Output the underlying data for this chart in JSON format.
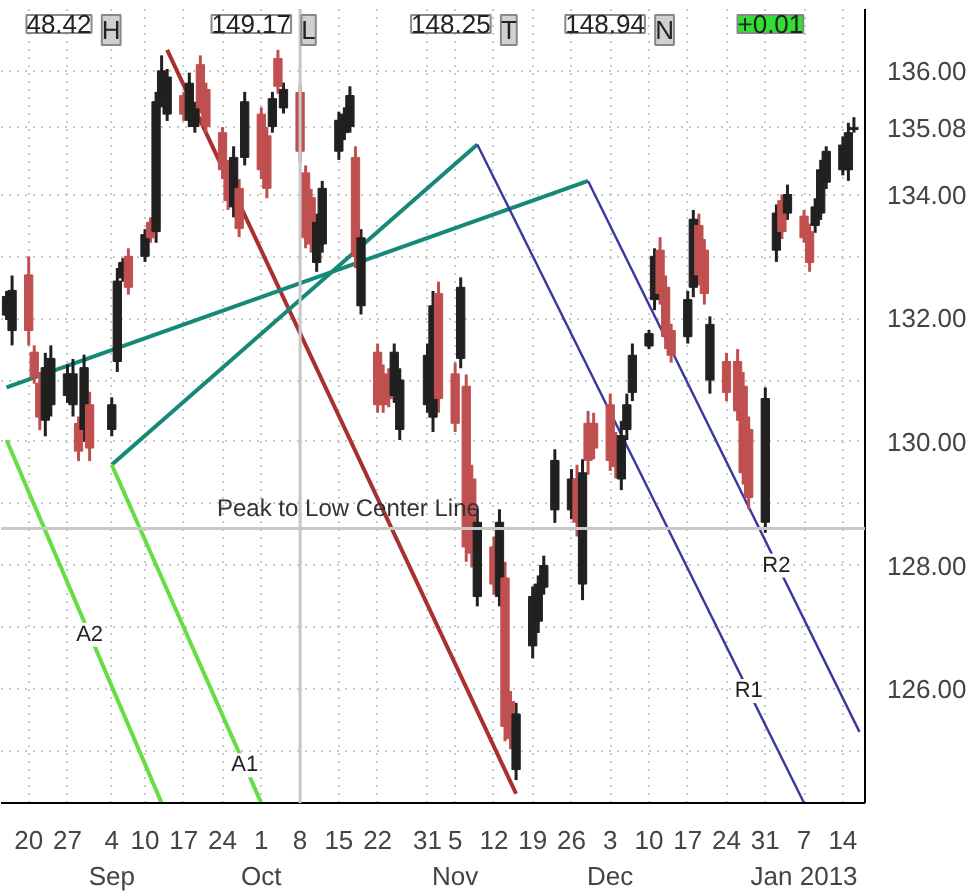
{
  "chart_data": {
    "type": "candlestick",
    "x": [
      "2012-08-16",
      "2012-08-17",
      "2012-08-20",
      "2012-08-21",
      "2012-08-22",
      "2012-08-23",
      "2012-08-24",
      "2012-08-27",
      "2012-08-28",
      "2012-08-29",
      "2012-08-30",
      "2012-08-31",
      "2012-09-04",
      "2012-09-05",
      "2012-09-06",
      "2012-09-07",
      "2012-09-10",
      "2012-09-11",
      "2012-09-12",
      "2012-09-13",
      "2012-09-14",
      "2012-09-17",
      "2012-09-18",
      "2012-09-19",
      "2012-09-20",
      "2012-09-21",
      "2012-09-24",
      "2012-09-25",
      "2012-09-26",
      "2012-09-27",
      "2012-09-28",
      "2012-10-01",
      "2012-10-02",
      "2012-10-03",
      "2012-10-04",
      "2012-10-05",
      "2012-10-08",
      "2012-10-09",
      "2012-10-10",
      "2012-10-11",
      "2012-10-12",
      "2012-10-15",
      "2012-10-16",
      "2012-10-17",
      "2012-10-18",
      "2012-10-19",
      "2012-10-22",
      "2012-10-23",
      "2012-10-24",
      "2012-10-25",
      "2012-10-26",
      "2012-10-31",
      "2012-11-01",
      "2012-11-02",
      "2012-11-05",
      "2012-11-06",
      "2012-11-07",
      "2012-11-08",
      "2012-11-09",
      "2012-11-12",
      "2012-11-13",
      "2012-11-14",
      "2012-11-15",
      "2012-11-16",
      "2012-11-19",
      "2012-11-20",
      "2012-11-21",
      "2012-11-23",
      "2012-11-26",
      "2012-11-27",
      "2012-11-28",
      "2012-11-29",
      "2012-11-30",
      "2012-12-03",
      "2012-12-04",
      "2012-12-05",
      "2012-12-06",
      "2012-12-07",
      "2012-12-10",
      "2012-12-11",
      "2012-12-12",
      "2012-12-13",
      "2012-12-14",
      "2012-12-17",
      "2012-12-18",
      "2012-12-19",
      "2012-12-20",
      "2012-12-21",
      "2012-12-24",
      "2012-12-26",
      "2012-12-27",
      "2012-12-28",
      "2012-12-31",
      "2013-01-02",
      "2013-01-03",
      "2013-01-04",
      "2013-01-07",
      "2013-01-08",
      "2013-01-09",
      "2013-01-10",
      "2013-01-11",
      "2013-01-14",
      "2013-01-15",
      "2013-01-16"
    ],
    "ohlc": [
      [
        132.05,
        132.44,
        131.97,
        132.35
      ],
      [
        131.8,
        132.69,
        131.56,
        132.45
      ],
      [
        132.7,
        133.0,
        131.56,
        131.8
      ],
      [
        131.45,
        131.56,
        130.94,
        131.05
      ],
      [
        130.95,
        131.13,
        130.19,
        130.4
      ],
      [
        130.35,
        131.44,
        130.09,
        131.2
      ],
      [
        130.6,
        131.56,
        130.41,
        131.35
      ],
      [
        130.75,
        131.25,
        130.63,
        131.1
      ],
      [
        130.6,
        131.34,
        130.41,
        131.1
      ],
      [
        130.3,
        130.41,
        129.69,
        129.85
      ],
      [
        130.2,
        131.41,
        130.0,
        131.2
      ],
      [
        130.6,
        130.81,
        129.69,
        129.9
      ],
      [
        130.2,
        130.72,
        130.09,
        130.6
      ],
      [
        131.3,
        132.81,
        131.13,
        132.6
      ],
      [
        132.65,
        132.97,
        132.59,
        132.9
      ],
      [
        133.0,
        133.13,
        132.38,
        132.5
      ],
      [
        133.0,
        133.44,
        132.91,
        133.35
      ],
      [
        133.55,
        133.63,
        133.22,
        133.3
      ],
      [
        133.4,
        135.66,
        133.22,
        135.5
      ],
      [
        135.5,
        136.25,
        135.41,
        136.0
      ],
      [
        135.3,
        136.03,
        135.19,
        135.9
      ],
      [
        135.6,
        135.66,
        135.19,
        135.3
      ],
      [
        135.2,
        135.97,
        135.09,
        135.8
      ],
      [
        135.1,
        135.5,
        135.0,
        135.4
      ],
      [
        136.1,
        136.25,
        135.31,
        135.4
      ],
      [
        135.7,
        135.81,
        135.0,
        135.1
      ],
      [
        135.0,
        135.09,
        134.25,
        134.4
      ],
      [
        134.45,
        134.56,
        133.75,
        133.9
      ],
      [
        133.8,
        134.78,
        133.63,
        134.6
      ],
      [
        134.1,
        134.25,
        133.31,
        133.45
      ],
      [
        134.6,
        135.66,
        134.47,
        135.5
      ],
      [
        135.3,
        135.41,
        134.25,
        134.4
      ],
      [
        134.95,
        135.09,
        133.94,
        134.1
      ],
      [
        135.1,
        135.66,
        135.0,
        135.55
      ],
      [
        136.2,
        136.34,
        135.63,
        135.75
      ],
      [
        135.4,
        135.81,
        135.31,
        135.7
      ],
      [
        135.65,
        135.78,
        134.53,
        134.7
      ],
      [
        134.35,
        134.47,
        133.13,
        133.3
      ],
      [
        133.95,
        134.09,
        133.06,
        133.2
      ],
      [
        132.9,
        133.69,
        132.75,
        133.55
      ],
      [
        133.2,
        134.22,
        133.06,
        134.1
      ],
      [
        134.7,
        135.34,
        134.56,
        135.2
      ],
      [
        135.0,
        135.41,
        134.88,
        135.3
      ],
      [
        135.1,
        135.75,
        135.0,
        135.6
      ],
      [
        134.6,
        134.78,
        132.81,
        133.0
      ],
      [
        132.2,
        133.44,
        132.06,
        133.3
      ],
      [
        131.45,
        131.59,
        130.47,
        130.6
      ],
      [
        131.1,
        131.25,
        130.47,
        130.6
      ],
      [
        131.05,
        131.19,
        130.56,
        130.7
      ],
      [
        130.75,
        131.59,
        130.63,
        131.45
      ],
      [
        130.2,
        131.19,
        130.03,
        131.0
      ],
      [
        130.6,
        131.59,
        130.47,
        131.4
      ],
      [
        130.4,
        132.44,
        130.16,
        132.2
      ],
      [
        132.4,
        132.59,
        130.47,
        130.7
      ],
      [
        131.1,
        131.28,
        130.16,
        130.3
      ],
      [
        131.35,
        132.66,
        131.19,
        132.5
      ],
      [
        130.9,
        131.09,
        128.06,
        128.3
      ],
      [
        129.4,
        129.63,
        127.97,
        128.2
      ],
      [
        127.5,
        128.91,
        127.34,
        128.7
      ],
      [
        128.3,
        128.47,
        127.53,
        127.7
      ],
      [
        127.5,
        128.91,
        127.34,
        128.7
      ],
      [
        127.8,
        128.06,
        125.16,
        125.4
      ],
      [
        125.8,
        125.97,
        125.03,
        125.2
      ],
      [
        124.7,
        125.78,
        124.53,
        125.6
      ],
      [
        126.7,
        127.66,
        126.5,
        127.5
      ],
      [
        127.1,
        127.84,
        126.91,
        127.7
      ],
      [
        127.65,
        128.16,
        127.53,
        128.0
      ],
      [
        128.9,
        129.88,
        128.69,
        129.7
      ],
      [
        128.9,
        129.56,
        128.75,
        129.4
      ],
      [
        129.4,
        129.63,
        128.47,
        128.7
      ],
      [
        127.7,
        129.72,
        127.44,
        129.5
      ],
      [
        130.3,
        130.5,
        129.47,
        129.7
      ],
      [
        130.3,
        130.47,
        129.72,
        129.9
      ],
      [
        130.6,
        130.78,
        129.53,
        129.7
      ],
      [
        130.0,
        130.16,
        129.41,
        129.6
      ],
      [
        129.4,
        130.34,
        129.22,
        130.1
      ],
      [
        130.2,
        130.78,
        130.03,
        130.6
      ],
      [
        130.8,
        131.59,
        130.66,
        131.4
      ],
      [
        131.55,
        131.81,
        131.5,
        131.75
      ],
      [
        132.3,
        133.13,
        132.13,
        133.0
      ],
      [
        133.1,
        133.31,
        132.22,
        132.4
      ],
      [
        132.5,
        132.69,
        131.5,
        131.7
      ],
      [
        131.8,
        131.91,
        131.28,
        131.4
      ],
      [
        131.7,
        132.44,
        131.59,
        132.3
      ],
      [
        132.5,
        133.75,
        132.34,
        133.6
      ],
      [
        133.5,
        133.69,
        132.53,
        132.7
      ],
      [
        133.1,
        133.28,
        132.22,
        132.4
      ],
      [
        131.0,
        132.03,
        130.78,
        131.9
      ],
      [
        131.3,
        131.44,
        130.66,
        130.8
      ],
      [
        131.3,
        131.5,
        130.34,
        130.5
      ],
      [
        130.9,
        131.13,
        129.31,
        129.5
      ],
      [
        130.2,
        130.41,
        128.91,
        129.1
      ],
      [
        128.7,
        130.88,
        128.53,
        130.7
      ],
      [
        133.1,
        133.84,
        132.91,
        133.7
      ],
      [
        133.9,
        134.0,
        133.28,
        133.4
      ],
      [
        133.7,
        134.16,
        133.59,
        134.0
      ],
      [
        133.65,
        133.75,
        133.22,
        133.3
      ],
      [
        133.4,
        133.53,
        132.75,
        132.9
      ],
      [
        133.5,
        133.94,
        133.38,
        133.8
      ],
      [
        133.7,
        134.56,
        133.59,
        134.4
      ],
      [
        134.2,
        134.78,
        134.09,
        134.7
      ],
      [
        134.4,
        134.94,
        134.31,
        134.8
      ],
      [
        134.4,
        135.16,
        134.22,
        135.0
      ],
      [
        135.05,
        135.25,
        135.0,
        135.08
      ]
    ],
    "colors": [
      "#202020",
      "#202020",
      "#c05050",
      "#c05050",
      "#c05050",
      "#202020",
      "#202020",
      "#202020",
      "#202020",
      "#c05050",
      "#202020",
      "#c05050",
      "#202020",
      "#202020",
      "#202020",
      "#c05050",
      "#202020",
      "#c05050",
      "#202020",
      "#202020",
      "#202020",
      "#c05050",
      "#202020",
      "#202020",
      "#c05050",
      "#c05050",
      "#c05050",
      "#c05050",
      "#202020",
      "#c05050",
      "#202020",
      "#c05050",
      "#c05050",
      "#202020",
      "#c05050",
      "#202020",
      "#c05050",
      "#c05050",
      "#c05050",
      "#202020",
      "#202020",
      "#202020",
      "#202020",
      "#202020",
      "#c05050",
      "#202020",
      "#c05050",
      "#c05050",
      "#c05050",
      "#202020",
      "#202020",
      "#202020",
      "#202020",
      "#c05050",
      "#c05050",
      "#202020",
      "#c05050",
      "#c05050",
      "#202020",
      "#c05050",
      "#202020",
      "#c05050",
      "#c05050",
      "#202020",
      "#202020",
      "#202020",
      "#202020",
      "#202020",
      "#202020",
      "#c05050",
      "#202020",
      "#c05050",
      "#c05050",
      "#c05050",
      "#c05050",
      "#202020",
      "#202020",
      "#202020",
      "#202020",
      "#202020",
      "#c05050",
      "#c05050",
      "#c05050",
      "#202020",
      "#202020",
      "#c05050",
      "#c05050",
      "#202020",
      "#c05050",
      "#c05050",
      "#c05050",
      "#c05050",
      "#202020",
      "#202020",
      "#c05050",
      "#202020",
      "#c05050",
      "#c05050",
      "#202020",
      "#202020",
      "#202020",
      "#202020",
      "#202020",
      "#202020"
    ],
    "series": [
      {
        "type": "line",
        "color": "#a83030",
        "x": [
          "2012-09-14",
          "2012-11-16"
        ],
        "values": [
          136.34,
          124.31
        ]
      },
      {
        "type": "line",
        "color": "#168878",
        "x": [
          "2012-08-16",
          "2012-11-29"
        ],
        "values": [
          130.88,
          134.22
        ]
      },
      {
        "type": "line",
        "color": "#168878",
        "x": [
          "2012-09-04",
          "2012-11-09"
        ],
        "values": [
          129.63,
          134.81
        ]
      },
      {
        "type": "line",
        "color": "#3838a0",
        "x": [
          "2012-11-09",
          "2013-01-07"
        ],
        "values": [
          134.81,
          124.16
        ]
      },
      {
        "type": "line",
        "color": "#3838a0",
        "x": [
          "2012-11-29",
          "2013-01-17"
        ],
        "values": [
          134.22,
          125.31
        ]
      },
      {
        "type": "line",
        "color": "#66dd44",
        "x": [
          "2012-08-16",
          "2012-09-13"
        ],
        "values": [
          130.03,
          124.16
        ]
      },
      {
        "type": "line",
        "color": "#66dd44",
        "x": [
          "2012-09-04",
          "2012-10-01"
        ],
        "values": [
          129.63,
          124.16
        ]
      }
    ],
    "xlim": [
      "2012-08-15",
      "2013-01-18"
    ],
    "ylim": [
      124.16,
      137.0
    ],
    "xticks": [
      {
        "value": "2012-08-20",
        "label": "20"
      },
      {
        "value": "2012-08-27",
        "label": "27"
      },
      {
        "value": "2012-09-04",
        "label": "4\nSep"
      },
      {
        "value": "2012-09-10",
        "label": "10"
      },
      {
        "value": "2012-09-17",
        "label": "17"
      },
      {
        "value": "2012-09-24",
        "label": "24"
      },
      {
        "value": "2012-10-01",
        "label": "1\nOct"
      },
      {
        "value": "2012-10-08",
        "label": "8"
      },
      {
        "value": "2012-10-15",
        "label": "15"
      },
      {
        "value": "2012-10-22",
        "label": "22"
      },
      {
        "value": "2012-10-31",
        "label": "31"
      },
      {
        "value": "2012-11-05",
        "label": "5\nNov"
      },
      {
        "value": "2012-11-12",
        "label": "12"
      },
      {
        "value": "2012-11-19",
        "label": "19"
      },
      {
        "value": "2012-11-26",
        "label": "26"
      },
      {
        "value": "2012-12-03",
        "label": "3\nDec"
      },
      {
        "value": "2012-12-10",
        "label": "10"
      },
      {
        "value": "2012-12-17",
        "label": "17"
      },
      {
        "value": "2012-12-24",
        "label": "24"
      },
      {
        "value": "2012-12-31",
        "label": "31"
      },
      {
        "value": "2013-01-07",
        "label": "7\nJan 2013"
      },
      {
        "value": "2013-01-14",
        "label": "14"
      }
    ],
    "yticks": [
      {
        "value": 125,
        "label": null
      },
      {
        "value": 126,
        "label": "126.00"
      },
      {
        "value": 127,
        "label": null
      },
      {
        "value": 128,
        "label": "128.00"
      },
      {
        "value": 129,
        "label": null
      },
      {
        "value": 130,
        "label": "130.00"
      },
      {
        "value": 131,
        "label": null
      },
      {
        "value": 132,
        "label": "132.00"
      },
      {
        "value": 133,
        "label": null
      },
      {
        "value": 134,
        "label": "134.00"
      },
      {
        "value": 135.08,
        "label": "135.08"
      },
      {
        "value": 136,
        "label": "136.00"
      }
    ],
    "ref_lines": [
      {
        "axis": "y",
        "value": 128.6,
        "label": "Peak to Low Center Line",
        "color": "#c8c8c8"
      },
      {
        "axis": "x",
        "value": "2012-10-08",
        "label": null,
        "color": "#c8c8c8"
      }
    ],
    "annotations": [
      "48.42",
      "H",
      "149.17",
      "L",
      "148.25",
      "T",
      "148.94",
      "N",
      "+0.01",
      {
        "text": "A2",
        "x": "2012-08-31",
        "y": 126.88
      },
      {
        "text": "A1",
        "x": "2012-09-28",
        "y": 124.77
      },
      {
        "text": "R1",
        "x": "2012-12-28",
        "y": 125.97
      },
      {
        "text": "R2",
        "x": "2013-01-02",
        "y": 128.0
      }
    ],
    "grid": true
  }
}
